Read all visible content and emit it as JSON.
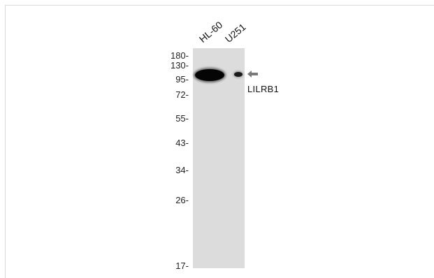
{
  "lanes": [
    "HL-60",
    "U251"
  ],
  "markers": [
    "180-",
    "130-",
    "95-",
    "72-",
    "55-",
    "43-",
    "34-",
    "26-",
    "17-"
  ],
  "target": "LILRB1",
  "colors": {
    "membrane": "#dcdcdc",
    "band": "#050505",
    "arrow": "#7a7a7a"
  }
}
